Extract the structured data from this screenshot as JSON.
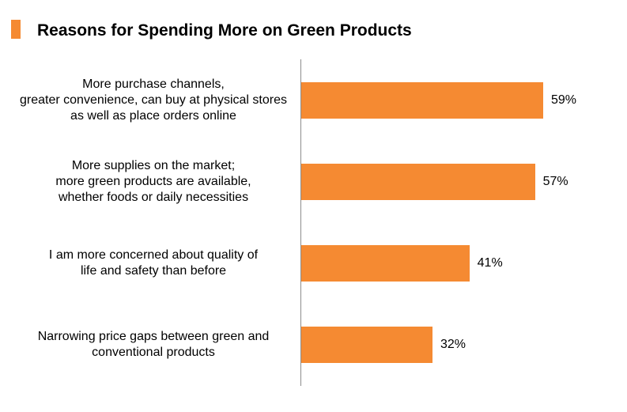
{
  "chart_data": {
    "type": "bar",
    "orientation": "horizontal",
    "title": "Reasons for Spending More on Green Products",
    "categories": [
      "More purchase channels, greater convenience, can buy at physical stores as well as place orders online",
      "More supplies on the market; more green products are available, whether foods or daily necessities",
      "I am more concerned about quality of life and safety than before",
      "Narrowing price gaps between green and conventional products"
    ],
    "values": [
      59,
      57,
      41,
      32
    ],
    "value_labels": [
      "59%",
      "57%",
      "41%",
      "32%"
    ],
    "xlabel": "",
    "ylabel": "",
    "xlim": [
      0,
      70
    ],
    "grid": false,
    "colors": {
      "bar": "#F58A32",
      "title_marker": "#F58A32"
    }
  }
}
